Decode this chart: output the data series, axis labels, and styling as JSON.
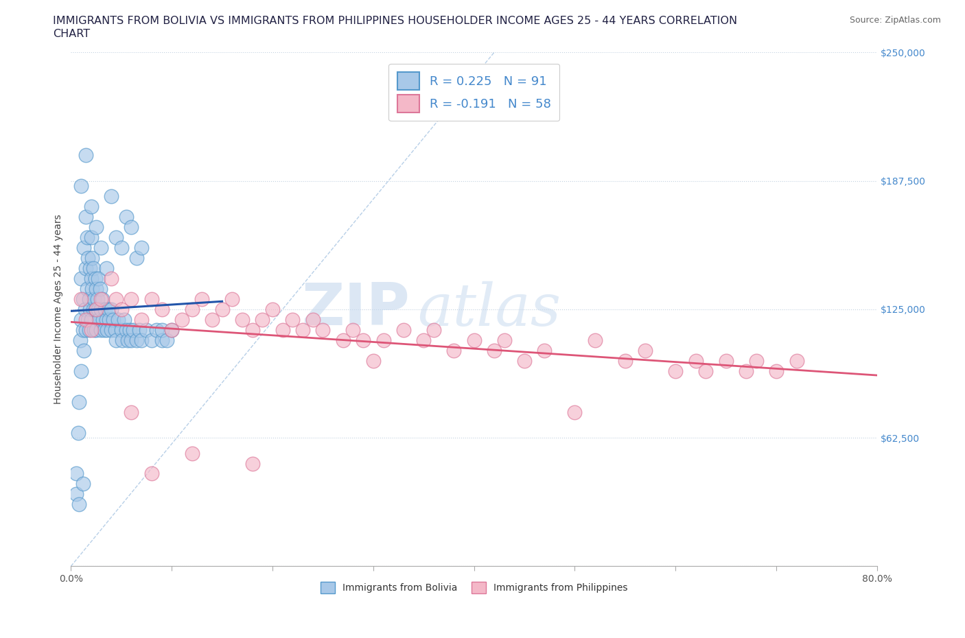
{
  "title_line1": "IMMIGRANTS FROM BOLIVIA VS IMMIGRANTS FROM PHILIPPINES HOUSEHOLDER INCOME AGES 25 - 44 YEARS CORRELATION",
  "title_line2": "CHART",
  "source": "Source: ZipAtlas.com",
  "ylabel": "Householder Income Ages 25 - 44 years",
  "xlim": [
    0.0,
    0.8
  ],
  "ylim": [
    0,
    250000
  ],
  "yticks": [
    0,
    62500,
    125000,
    187500,
    250000
  ],
  "yticklabels": [
    "",
    "$62,500",
    "$125,000",
    "$187,500",
    "$250,000"
  ],
  "bolivia_color": "#a8c8e8",
  "bolivia_edge": "#5599cc",
  "philippines_color": "#f4b8c8",
  "philippines_edge": "#dd7799",
  "trend_bolivia_color": "#2255aa",
  "trend_philippines_color": "#dd5577",
  "R_bolivia": 0.225,
  "N_bolivia": 91,
  "R_philippines": -0.191,
  "N_philippines": 58,
  "legend_label_bolivia": "Immigrants from Bolivia",
  "legend_label_philippines": "Immigrants from Philippines",
  "bolivia_x": [
    0.005,
    0.007,
    0.008,
    0.009,
    0.01,
    0.01,
    0.01,
    0.012,
    0.012,
    0.013,
    0.013,
    0.014,
    0.015,
    0.015,
    0.015,
    0.016,
    0.016,
    0.017,
    0.017,
    0.018,
    0.018,
    0.019,
    0.019,
    0.02,
    0.02,
    0.02,
    0.021,
    0.021,
    0.022,
    0.022,
    0.023,
    0.023,
    0.024,
    0.024,
    0.025,
    0.025,
    0.026,
    0.027,
    0.027,
    0.028,
    0.029,
    0.03,
    0.03,
    0.031,
    0.032,
    0.033,
    0.034,
    0.035,
    0.036,
    0.037,
    0.038,
    0.04,
    0.04,
    0.042,
    0.044,
    0.045,
    0.047,
    0.05,
    0.051,
    0.053,
    0.055,
    0.056,
    0.058,
    0.06,
    0.062,
    0.065,
    0.068,
    0.07,
    0.075,
    0.08,
    0.085,
    0.09,
    0.09,
    0.095,
    0.1,
    0.01,
    0.015,
    0.02,
    0.025,
    0.03,
    0.035,
    0.04,
    0.045,
    0.05,
    0.055,
    0.06,
    0.065,
    0.07,
    0.005,
    0.008,
    0.012
  ],
  "bolivia_y": [
    45000,
    65000,
    80000,
    110000,
    120000,
    95000,
    140000,
    130000,
    115000,
    105000,
    155000,
    125000,
    145000,
    115000,
    170000,
    135000,
    160000,
    120000,
    150000,
    130000,
    115000,
    145000,
    125000,
    140000,
    120000,
    160000,
    135000,
    150000,
    125000,
    145000,
    130000,
    115000,
    140000,
    125000,
    135000,
    115000,
    130000,
    125000,
    140000,
    120000,
    135000,
    125000,
    115000,
    130000,
    120000,
    115000,
    125000,
    120000,
    115000,
    125000,
    120000,
    115000,
    125000,
    120000,
    115000,
    110000,
    120000,
    115000,
    110000,
    120000,
    115000,
    110000,
    115000,
    110000,
    115000,
    110000,
    115000,
    110000,
    115000,
    110000,
    115000,
    110000,
    115000,
    110000,
    115000,
    185000,
    200000,
    175000,
    165000,
    155000,
    145000,
    180000,
    160000,
    155000,
    170000,
    165000,
    150000,
    155000,
    35000,
    30000,
    40000
  ],
  "philippines_x": [
    0.01,
    0.015,
    0.02,
    0.025,
    0.03,
    0.04,
    0.045,
    0.05,
    0.06,
    0.07,
    0.08,
    0.09,
    0.1,
    0.11,
    0.12,
    0.13,
    0.14,
    0.15,
    0.16,
    0.17,
    0.18,
    0.19,
    0.2,
    0.21,
    0.22,
    0.23,
    0.24,
    0.25,
    0.27,
    0.28,
    0.29,
    0.3,
    0.31,
    0.33,
    0.35,
    0.36,
    0.38,
    0.4,
    0.42,
    0.43,
    0.45,
    0.47,
    0.5,
    0.52,
    0.55,
    0.57,
    0.6,
    0.62,
    0.63,
    0.65,
    0.67,
    0.68,
    0.7,
    0.72,
    0.06,
    0.08,
    0.12,
    0.18
  ],
  "philippines_y": [
    130000,
    120000,
    115000,
    125000,
    130000,
    140000,
    130000,
    125000,
    130000,
    120000,
    130000,
    125000,
    115000,
    120000,
    125000,
    130000,
    120000,
    125000,
    130000,
    120000,
    115000,
    120000,
    125000,
    115000,
    120000,
    115000,
    120000,
    115000,
    110000,
    115000,
    110000,
    100000,
    110000,
    115000,
    110000,
    115000,
    105000,
    110000,
    105000,
    110000,
    100000,
    105000,
    75000,
    110000,
    100000,
    105000,
    95000,
    100000,
    95000,
    100000,
    95000,
    100000,
    95000,
    100000,
    75000,
    45000,
    55000,
    50000
  ]
}
